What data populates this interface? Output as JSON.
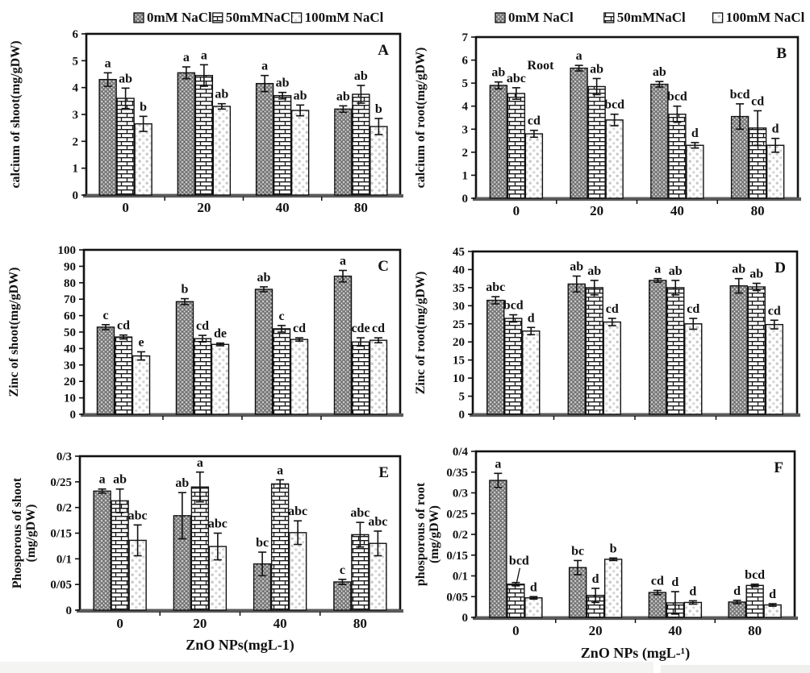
{
  "figure": {
    "description": "Six-panel bar figure (A-F) of calcium, zinc and phosporous content of shoot and root under NaCl salinity and ZnO nanoparticle treatments",
    "x_categories": [
      "0",
      "20",
      "40",
      "80"
    ]
  },
  "legend": {
    "items": [
      {
        "label": "0mM NaCl",
        "pattern": "speckle"
      },
      {
        "label": "50mMNaCl",
        "pattern": "brick"
      },
      {
        "label": "100mM NaCl",
        "pattern": "dots"
      }
    ]
  },
  "colors": {
    "ink": "#111111",
    "axis_gray": "#5a5a5a",
    "speckle_base": "#878787",
    "dot_gray": "#c9c9c9"
  },
  "chart_data": [
    {
      "id": "A",
      "type": "bar",
      "panel_letter": "A",
      "ylabel": "calcium of shoot(mg/gDW)",
      "ylabel_lines": [
        "calcium of shoot(mg/gDW)"
      ],
      "ylim": [
        0,
        6
      ],
      "ytick_values": [
        0,
        1,
        2,
        3,
        4,
        5,
        6
      ],
      "ytick_labels": [
        "0",
        "1",
        "2",
        "3",
        "4",
        "5",
        "6"
      ],
      "categories": [
        "0",
        "20",
        "40",
        "80"
      ],
      "show_x_tick_labels": true,
      "xlabel": "",
      "show_legend": true,
      "series": [
        {
          "name": "0mM NaCl",
          "values": [
            4.3,
            4.55,
            4.15,
            3.2
          ],
          "errors": [
            0.25,
            0.22,
            0.3,
            0.12
          ],
          "letters": [
            "a",
            "a",
            "a",
            "ab"
          ]
        },
        {
          "name": "50mMNaCl",
          "values": [
            3.6,
            4.45,
            3.7,
            3.75
          ],
          "errors": [
            0.38,
            0.4,
            0.12,
            0.33
          ],
          "letters": [
            "ab",
            "a",
            "ab",
            "ab"
          ]
        },
        {
          "name": "100mM NaCl",
          "values": [
            2.65,
            3.3,
            3.15,
            2.55
          ],
          "errors": [
            0.28,
            0.1,
            0.2,
            0.3
          ],
          "letters": [
            "b",
            "ab",
            "ab",
            "b"
          ]
        }
      ]
    },
    {
      "id": "B",
      "type": "bar",
      "panel_letter": "B",
      "ylabel": "calcium of root(mg/gDW)",
      "ylabel_lines": [
        "calcium of root(mg/gDW)"
      ],
      "ylim": [
        0,
        7
      ],
      "ytick_values": [
        0,
        1,
        2,
        3,
        4,
        5,
        6,
        7
      ],
      "ytick_labels": [
        "0",
        "1",
        "2",
        "3",
        "4",
        "5",
        "6",
        "7"
      ],
      "categories": [
        "0",
        "20",
        "40",
        "80"
      ],
      "show_x_tick_labels": true,
      "xlabel": "",
      "show_legend": true,
      "inner_annotation": "Root",
      "series": [
        {
          "name": "0mM NaCl",
          "values": [
            4.9,
            5.65,
            4.95,
            3.55
          ],
          "errors": [
            0.15,
            0.12,
            0.12,
            0.55
          ],
          "letters": [
            "ab",
            "a",
            "ab",
            "bcd"
          ]
        },
        {
          "name": "50mMNaCl",
          "values": [
            4.55,
            4.85,
            3.65,
            3.05
          ],
          "errors": [
            0.25,
            0.35,
            0.35,
            0.75
          ],
          "letters": [
            "abc",
            "ab",
            "bcd",
            "cd"
          ]
        },
        {
          "name": "100mM NaCl",
          "values": [
            2.8,
            3.4,
            2.3,
            2.3
          ],
          "errors": [
            0.15,
            0.25,
            0.12,
            0.3
          ],
          "letters": [
            "cd",
            "bcd",
            "d",
            "d"
          ]
        }
      ]
    },
    {
      "id": "C",
      "type": "bar",
      "panel_letter": "C",
      "ylabel": "Zinc of shoot(mg/gDW)",
      "ylabel_lines": [
        "Zinc of shoot(mg/gDW)"
      ],
      "ylim": [
        0,
        100
      ],
      "ytick_values": [
        0,
        10,
        20,
        30,
        40,
        50,
        60,
        70,
        80,
        90,
        100
      ],
      "ytick_labels": [
        "0",
        "10",
        "20",
        "30",
        "40",
        "50",
        "60",
        "70",
        "80",
        "90",
        "100"
      ],
      "categories": [
        "0",
        "20",
        "40",
        "80"
      ],
      "show_x_tick_labels": false,
      "xlabel": "",
      "show_legend": false,
      "series": [
        {
          "name": "0mM NaCl",
          "values": [
            53,
            68.5,
            76,
            84
          ],
          "errors": [
            1.5,
            1.8,
            1.5,
            3.5
          ],
          "letters": [
            "c",
            "b",
            "ab",
            "a"
          ]
        },
        {
          "name": "50mMNaCl",
          "values": [
            47,
            46,
            52,
            44
          ],
          "errors": [
            1.2,
            2,
            2,
            2.5
          ],
          "letters": [
            "cd",
            "cd",
            "c",
            "cde"
          ]
        },
        {
          "name": "100mM NaCl",
          "values": [
            35.5,
            42.5,
            45.5,
            45
          ],
          "errors": [
            2.5,
            0.8,
            1,
            1.5
          ],
          "letters": [
            "e",
            "de",
            "cd",
            "cd"
          ]
        }
      ]
    },
    {
      "id": "D",
      "type": "bar",
      "panel_letter": "D",
      "ylabel": "Zinc of root(mg/gDW)",
      "ylabel_lines": [
        "Zinc of root(mg/gDW)"
      ],
      "ylim": [
        0,
        45
      ],
      "ytick_values": [
        0,
        5,
        10,
        15,
        20,
        25,
        30,
        35,
        40,
        45
      ],
      "ytick_labels": [
        "0",
        "5",
        "10",
        "15",
        "20",
        "25",
        "30",
        "35",
        "40",
        "45"
      ],
      "categories": [
        "0",
        "20",
        "40",
        "80"
      ],
      "show_x_tick_labels": false,
      "xlabel": "",
      "show_legend": false,
      "series": [
        {
          "name": "0mM NaCl",
          "values": [
            31.5,
            36,
            37,
            35.5
          ],
          "errors": [
            1,
            2.2,
            0.5,
            2
          ],
          "letters": [
            "abc",
            "ab",
            "a",
            "ab"
          ]
        },
        {
          "name": "50mMNaCl",
          "values": [
            26.5,
            35,
            35,
            35.2
          ],
          "errors": [
            1,
            2,
            2,
            1
          ],
          "letters": [
            "bcd",
            "ab",
            "ab",
            "ab"
          ]
        },
        {
          "name": "100mM NaCl",
          "values": [
            23,
            25.5,
            25,
            24.8
          ],
          "errors": [
            1,
            1,
            1.5,
            1.2
          ],
          "letters": [
            "d",
            "cd",
            "cd",
            "cd"
          ]
        }
      ]
    },
    {
      "id": "E",
      "type": "bar",
      "panel_letter": "E",
      "ylabel": "Phosporous of shoot (mg/gDW)",
      "ylabel_lines": [
        "Phosporous of shoot",
        "(mg/gDW)"
      ],
      "ylim": [
        0,
        0.3
      ],
      "ytick_values": [
        0,
        0.05,
        0.1,
        0.15,
        0.2,
        0.25,
        0.3
      ],
      "ytick_labels": [
        "0",
        "0/05",
        "0/1",
        "0/15",
        "0/2",
        "0/25",
        "0/3"
      ],
      "categories": [
        "0",
        "20",
        "40",
        "80"
      ],
      "show_x_tick_labels": true,
      "xlabel": "ZnO NPs(mgL-1)",
      "show_legend": false,
      "series": [
        {
          "name": "0mM NaCl",
          "values": [
            0.232,
            0.184,
            0.09,
            0.055
          ],
          "errors": [
            0.004,
            0.045,
            0.023,
            0.005
          ],
          "letters": [
            "a",
            "ab",
            "bc",
            "c"
          ]
        },
        {
          "name": "50mMNaCl",
          "values": [
            0.213,
            0.24,
            0.246,
            0.147
          ],
          "errors": [
            0.023,
            0.029,
            0.008,
            0.024
          ],
          "letters": [
            "ab",
            "a",
            "a",
            "abc"
          ]
        },
        {
          "name": "100mM NaCl",
          "values": [
            0.136,
            0.124,
            0.151,
            0.13
          ],
          "errors": [
            0.03,
            0.026,
            0.023,
            0.024
          ],
          "letters": [
            "abc",
            "abc",
            "abc",
            "abc"
          ]
        }
      ]
    },
    {
      "id": "F",
      "type": "bar",
      "panel_letter": "F",
      "ylabel": "phosporous of root (mg/gDW)",
      "ylabel_lines": [
        "phosporous of root",
        "(mg/gDW)"
      ],
      "ylim": [
        0,
        0.4
      ],
      "ytick_values": [
        0,
        0.05,
        0.1,
        0.15,
        0.2,
        0.25,
        0.3,
        0.35,
        0.4
      ],
      "ytick_labels": [
        "0",
        "0/05",
        "0/1",
        "0/15",
        "0/2",
        "0/25",
        "0/3",
        "0/35",
        "0/4"
      ],
      "categories": [
        "0",
        "20",
        "40",
        "80"
      ],
      "show_x_tick_labels": true,
      "xlabel": "ZnO NPs (mgL-¹)",
      "show_legend": false,
      "leader_annotation": {
        "series_index": 1,
        "category_index": 0
      },
      "series": [
        {
          "name": "0mM NaCl",
          "values": [
            0.33,
            0.12,
            0.06,
            0.037
          ],
          "errors": [
            0.017,
            0.017,
            0.005,
            0.004
          ],
          "letters": [
            "a",
            "bc",
            "cd",
            "d"
          ]
        },
        {
          "name": "50mMNaCl",
          "values": [
            0.08,
            0.053,
            0.035,
            0.077
          ],
          "errors": [
            0.004,
            0.017,
            0.027,
            0.003
          ],
          "letters": [
            "bcd",
            "d",
            "d",
            "bcd"
          ]
        },
        {
          "name": "100mM NaCl",
          "values": [
            0.047,
            0.14,
            0.036,
            0.03
          ],
          "errors": [
            0.003,
            0.003,
            0.004,
            0.003
          ],
          "letters": [
            "d",
            "b",
            "d",
            "d"
          ]
        }
      ]
    }
  ]
}
